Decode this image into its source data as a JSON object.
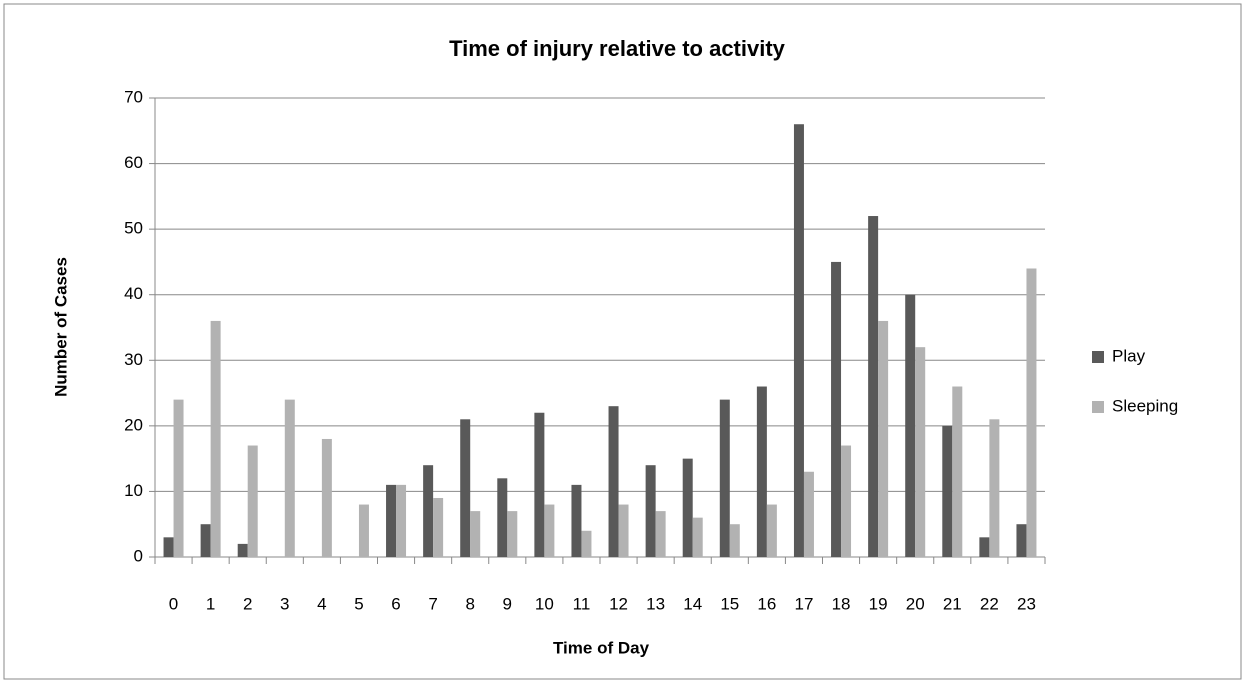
{
  "chart_data": {
    "type": "bar",
    "title": "Time of injury relative to activity",
    "x_label": "Time of Day",
    "y_label": "Number of Cases",
    "categories": [
      "0",
      "1",
      "2",
      "3",
      "4",
      "5",
      "6",
      "7",
      "8",
      "9",
      "10",
      "11",
      "12",
      "13",
      "14",
      "15",
      "16",
      "17",
      "18",
      "19",
      "20",
      "21",
      "22",
      "23"
    ],
    "series": [
      {
        "name": "Play",
        "color": "#595959",
        "values": [
          3,
          5,
          2,
          0,
          0,
          0,
          11,
          14,
          21,
          12,
          22,
          11,
          23,
          14,
          15,
          24,
          26,
          66,
          45,
          52,
          40,
          20,
          3,
          5
        ]
      },
      {
        "name": "Sleeping",
        "color": "#b2b2b2",
        "values": [
          24,
          36,
          17,
          24,
          18,
          8,
          11,
          9,
          7,
          7,
          8,
          4,
          8,
          7,
          6,
          5,
          8,
          13,
          17,
          36,
          32,
          26,
          21,
          44
        ]
      }
    ],
    "ylim": [
      0,
      70
    ],
    "yticks": [
      0,
      10,
      20,
      30,
      40,
      50,
      60,
      70
    ],
    "grid": true,
    "legend": "right"
  }
}
